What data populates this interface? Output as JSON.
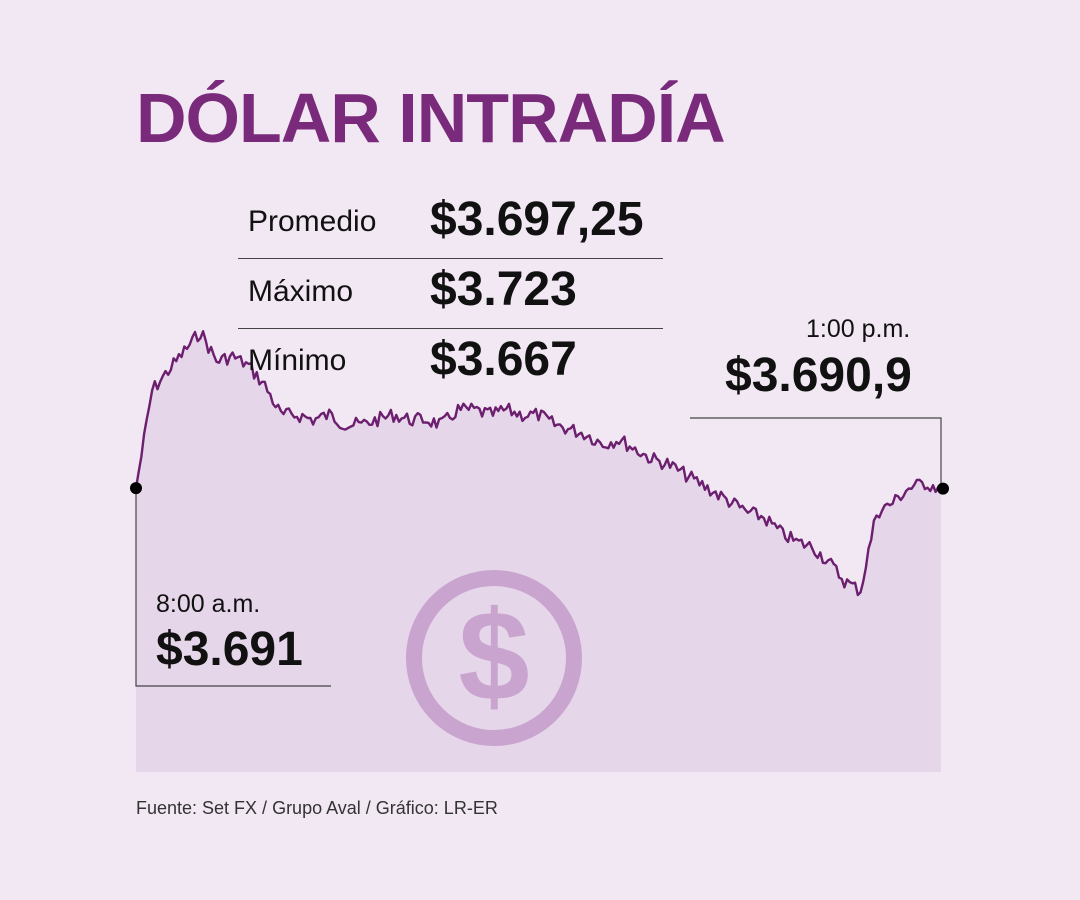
{
  "title": "DÓLAR INTRADÍA",
  "stats": [
    {
      "label": "Promedio",
      "value": "$3.697,25"
    },
    {
      "label": "Máximo",
      "value": "$3.723"
    },
    {
      "label": "Mínimo",
      "value": "$3.667"
    }
  ],
  "start_annotation": {
    "time": "8:00 a.m.",
    "value": "$3.691"
  },
  "end_annotation": {
    "time": "1:00 p.m.",
    "value": "$3.690,9"
  },
  "source": "Fuente: Set FX / Grupo Aval / Gráfico: LR-ER",
  "icon": "dollar-coin-icon",
  "colors": {
    "background": "#f2e8f4",
    "title": "#7a2a7b",
    "line": "#6b1f6e",
    "area": "#e6d6ea",
    "icon": "#c9a4cf"
  },
  "chart_data": {
    "type": "area",
    "series": [
      {
        "x": [
          "8:00",
          "8:06",
          "8:12",
          "8:18",
          "8:24",
          "8:30",
          "8:36",
          "8:42",
          "8:48",
          "8:54",
          "9:00",
          "9:06",
          "9:12",
          "9:18",
          "9:24",
          "9:30",
          "9:36",
          "9:42",
          "9:48",
          "9:54",
          "10:00",
          "10:06",
          "10:12",
          "10:18",
          "10:24",
          "10:30",
          "10:36",
          "10:42",
          "10:48",
          "10:54",
          "11:00",
          "11:06",
          "11:12",
          "11:18",
          "11:24",
          "11:30",
          "11:36",
          "11:42",
          "11:48",
          "11:54",
          "12:00",
          "12:06",
          "12:12",
          "12:18",
          "12:24",
          "12:30",
          "12:36",
          "12:42",
          "12:48",
          "12:54",
          "13:00"
        ],
        "values": [
          3691,
          3711,
          3715,
          3719,
          3723,
          3717,
          3718,
          3716,
          3712,
          3706,
          3706,
          3705,
          3706,
          3704,
          3704,
          3705,
          3706,
          3705,
          3705,
          3704,
          3707,
          3707,
          3706,
          3707,
          3706,
          3706,
          3704,
          3703,
          3702,
          3700,
          3701,
          3699,
          3697,
          3696,
          3694,
          3692,
          3690,
          3688,
          3686,
          3685,
          3682,
          3680,
          3679,
          3676,
          3672,
          3670,
          3686,
          3688,
          3691,
          3692,
          3690.9
        ]
      }
    ],
    "xlim": [
      "8:00",
      "13:00"
    ],
    "ylim": [
      3655,
      3725
    ],
    "grid": false,
    "legend": "none"
  }
}
